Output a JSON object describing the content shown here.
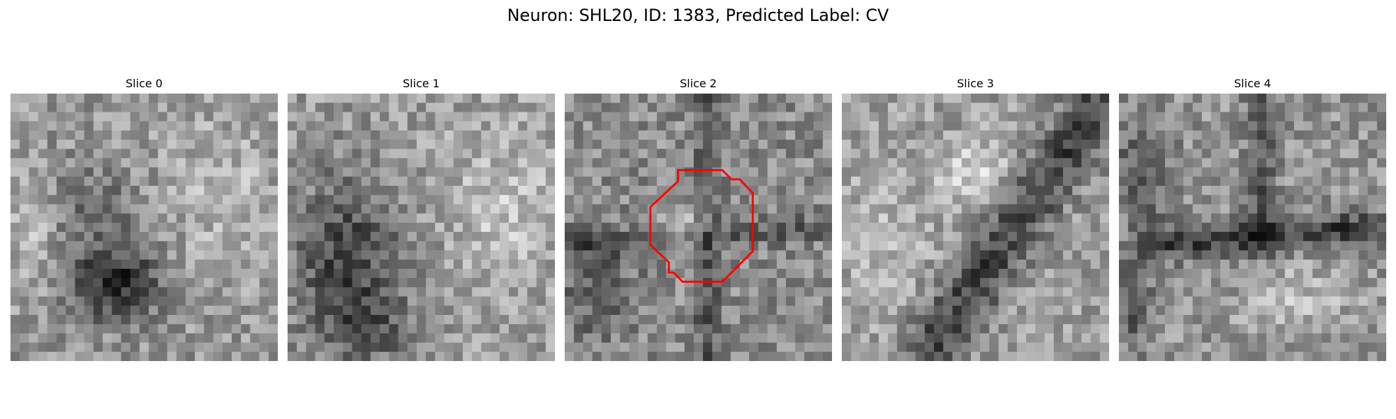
{
  "figure": {
    "title": "Neuron: SHL20, ID: 1383, Predicted Label: CV"
  },
  "panels": [
    {
      "title": "Slice 0",
      "image": "grayscale-microscopy-slice"
    },
    {
      "title": "Slice 1",
      "image": "grayscale-microscopy-slice"
    },
    {
      "title": "Slice 2",
      "image": "grayscale-microscopy-slice-with-roi-contour"
    },
    {
      "title": "Slice 3",
      "image": "grayscale-microscopy-slice"
    },
    {
      "title": "Slice 4",
      "image": "grayscale-microscopy-slice"
    }
  ],
  "roi_contour_color": "#ff0000"
}
